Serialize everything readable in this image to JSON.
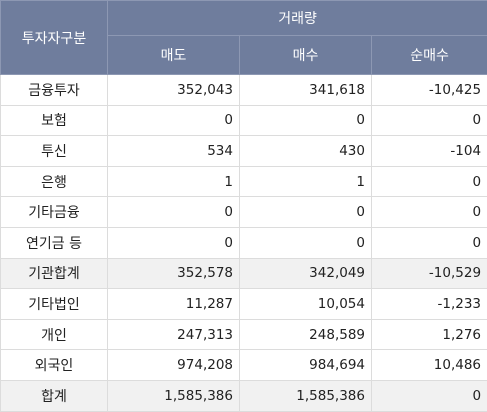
{
  "header": {
    "category_label": "투자자구분",
    "volume_label": "거래량",
    "sell_label": "매도",
    "buy_label": "매수",
    "net_label": "순매수"
  },
  "rows": [
    {
      "label": "금융투자",
      "sell": "352,043",
      "buy": "341,618",
      "net": "-10,425",
      "shaded": false
    },
    {
      "label": "보험",
      "sell": "0",
      "buy": "0",
      "net": "0",
      "shaded": false
    },
    {
      "label": "투신",
      "sell": "534",
      "buy": "430",
      "net": "-104",
      "shaded": false
    },
    {
      "label": "은행",
      "sell": "1",
      "buy": "1",
      "net": "0",
      "shaded": false
    },
    {
      "label": "기타금융",
      "sell": "0",
      "buy": "0",
      "net": "0",
      "shaded": false
    },
    {
      "label": "연기금 등",
      "sell": "0",
      "buy": "0",
      "net": "0",
      "shaded": false
    },
    {
      "label": "기관합계",
      "sell": "352,578",
      "buy": "342,049",
      "net": "-10,529",
      "shaded": true
    },
    {
      "label": "기타법인",
      "sell": "11,287",
      "buy": "10,054",
      "net": "-1,233",
      "shaded": false
    },
    {
      "label": "개인",
      "sell": "247,313",
      "buy": "248,589",
      "net": "1,276",
      "shaded": false
    },
    {
      "label": "외국인",
      "sell": "974,208",
      "buy": "984,694",
      "net": "10,486",
      "shaded": false
    },
    {
      "label": "합계",
      "sell": "1,585,386",
      "buy": "1,585,386",
      "net": "0",
      "shaded": true
    }
  ]
}
